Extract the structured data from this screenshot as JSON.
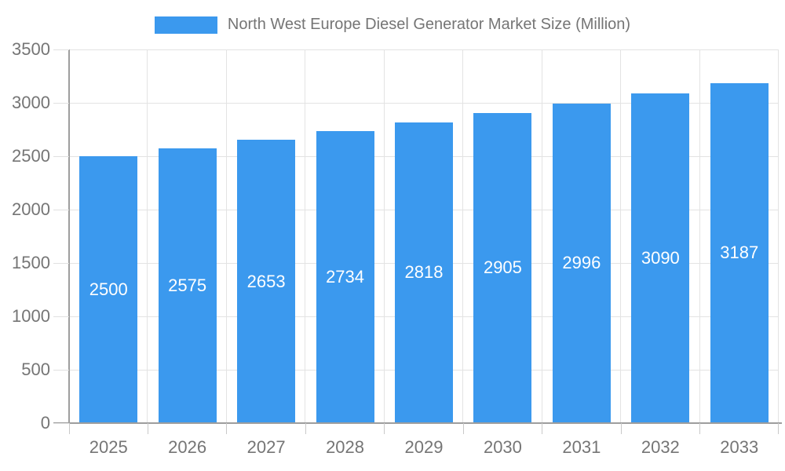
{
  "legend": {
    "label": "North West Europe Diesel Generator Market Size (Million)",
    "swatch_color": "#3b99ee"
  },
  "chart_data": {
    "type": "bar",
    "title": "North West Europe Diesel Generator Market Size (Million)",
    "categories": [
      "2025",
      "2026",
      "2027",
      "2028",
      "2029",
      "2030",
      "2031",
      "2032",
      "2033"
    ],
    "series": [
      {
        "name": "North West Europe Diesel Generator Market Size (Million)",
        "values": [
          2500,
          2575,
          2653,
          2734,
          2818,
          2905,
          2996,
          3090,
          3187
        ]
      }
    ],
    "xlabel": "",
    "ylabel": "",
    "ylim": [
      0,
      3500
    ],
    "yticks": [
      0,
      500,
      1000,
      1500,
      2000,
      2500,
      3000,
      3500
    ],
    "grid": true,
    "legend_position": "top",
    "bar_color": "#3b99ee",
    "bar_label_color": "#ffffff",
    "axis_text_color": "#757575",
    "grid_color": "#e3e3e3",
    "axis_line_color": "#9e9e9e"
  }
}
